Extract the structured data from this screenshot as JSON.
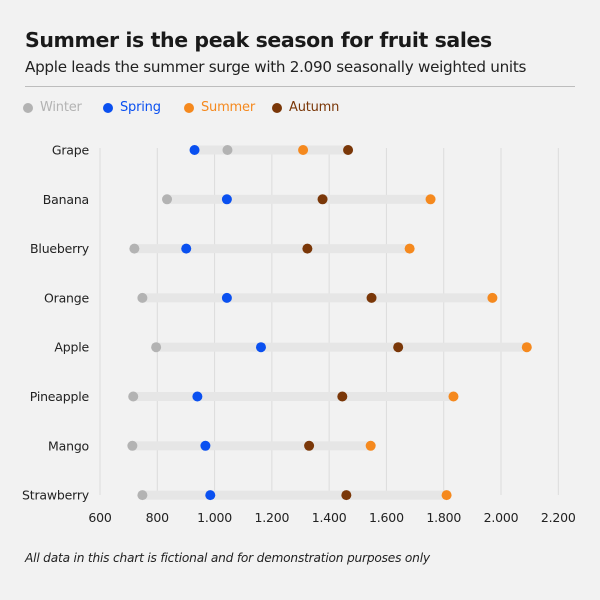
{
  "header": {
    "title": "Summer is the peak season for fruit sales",
    "subtitle": "Apple leads the summer surge with 2.090 seasonally weighted units"
  },
  "footer": {
    "note": "All data in this chart is fictional and for demonstration purposes only"
  },
  "colors": {
    "background": "#f2f2f2",
    "range_bar": "#e6e6e6",
    "gridline": "#dcdcdc",
    "Winter": "#b3b3b3",
    "Spring": "#0a50f0",
    "Summer": "#f5891e",
    "Autumn": "#7a3708"
  },
  "chart_data": {
    "type": "dot-range",
    "title": "Summer is the peak season for fruit sales",
    "subtitle": "Apple leads the summer surge with 2.090 seasonally weighted units",
    "xlabel": "",
    "ylabel": "",
    "xlim": [
      600,
      2200
    ],
    "x_ticks": [
      600,
      800,
      1000,
      1200,
      1400,
      1600,
      1800,
      2000,
      2200
    ],
    "x_tick_labels": [
      "600",
      "800",
      "1.000",
      "1.200",
      "1.400",
      "1.600",
      "1.800",
      "2.000",
      "2.200"
    ],
    "grid": "vertical",
    "legend_position": "top-left",
    "legend": [
      "Winter",
      "Spring",
      "Summer",
      "Autumn"
    ],
    "categories": [
      "Grape",
      "Banana",
      "Blueberry",
      "Orange",
      "Apple",
      "Pineapple",
      "Mango",
      "Strawberry"
    ],
    "series": [
      {
        "name": "Winter",
        "values": [
          1045,
          834,
          720,
          748,
          796,
          716,
          713,
          748
        ]
      },
      {
        "name": "Spring",
        "values": [
          930,
          1043,
          901,
          1043,
          1162,
          940,
          968,
          985
        ]
      },
      {
        "name": "Summer",
        "values": [
          1309,
          1754,
          1681,
          1970,
          2090,
          1834,
          1545,
          1810
        ]
      },
      {
        "name": "Autumn",
        "values": [
          1466,
          1377,
          1324,
          1548,
          1641,
          1446,
          1330,
          1460
        ]
      }
    ]
  }
}
